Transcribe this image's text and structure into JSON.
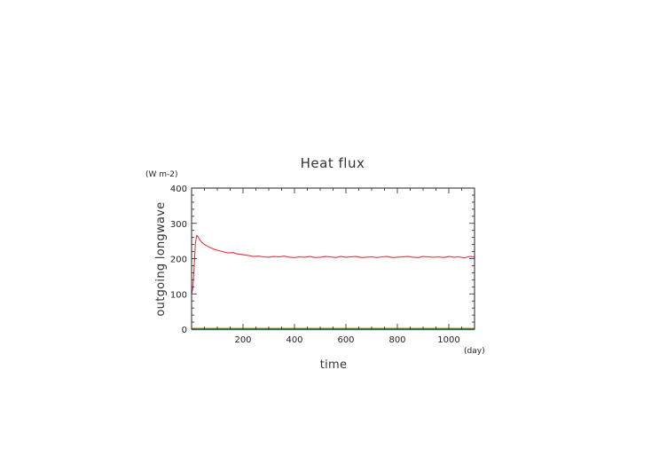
{
  "chart_data": {
    "type": "line",
    "title": "Heat flux",
    "xlabel": "time",
    "ylabel": "outgoing longwave",
    "x_unit": "(day)",
    "y_unit": "(W m-2)",
    "xlim": [
      0,
      1100
    ],
    "ylim": [
      0,
      400
    ],
    "x_ticks": [
      200,
      400,
      600,
      800,
      1000
    ],
    "y_ticks": [
      0,
      100,
      200,
      300,
      400
    ],
    "grid": false,
    "series": [
      {
        "color": "#e8323c",
        "x": [
          0,
          5,
          10,
          15,
          20,
          25,
          30,
          40,
          50,
          60,
          70,
          80,
          90,
          100,
          120,
          140,
          160,
          180,
          200,
          220,
          240,
          260,
          280,
          300,
          320,
          340,
          360,
          380,
          400,
          420,
          440,
          460,
          480,
          500,
          520,
          540,
          560,
          580,
          600,
          620,
          640,
          660,
          680,
          700,
          720,
          740,
          760,
          780,
          800,
          820,
          840,
          860,
          880,
          900,
          920,
          940,
          960,
          980,
          1000,
          1020,
          1040,
          1060,
          1080,
          1100
        ],
        "values": [
          100,
          115,
          175,
          245,
          266,
          262,
          255,
          246,
          240,
          236,
          232,
          229,
          226,
          224,
          220,
          216,
          217,
          213,
          211,
          209,
          206,
          207,
          205,
          204,
          206,
          205,
          207,
          204,
          203,
          205,
          204,
          206,
          203,
          204,
          206,
          205,
          203,
          206,
          204,
          205,
          206,
          203,
          204,
          205,
          203,
          205,
          206,
          203,
          204,
          205,
          206,
          204,
          203,
          206,
          205,
          204,
          205,
          203,
          206,
          204,
          205,
          202,
          206,
          205
        ]
      },
      {
        "color": "#e8a200",
        "x": [
          0,
          1100
        ],
        "values": [
          2,
          2
        ]
      },
      {
        "color": "#7fc241",
        "x": [
          0,
          1100
        ],
        "values": [
          0,
          0
        ]
      },
      {
        "color": "#1fb8d8",
        "x": [
          0,
          1100
        ],
        "values": [
          -1,
          -1
        ]
      }
    ]
  }
}
